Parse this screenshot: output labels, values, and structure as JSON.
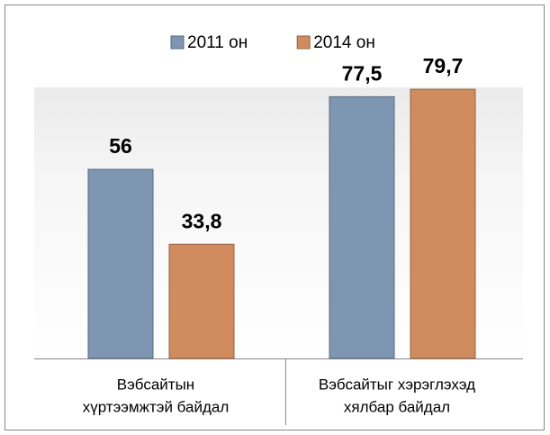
{
  "chart_data": {
    "type": "bar",
    "categories": [
      [
        "Вэбсайтын",
        "хүртээмжтэй байдал"
      ],
      [
        "Вэбсайтыг хэрэглэхэд",
        "хялбар байдал"
      ]
    ],
    "series": [
      {
        "name": "2011 он",
        "color": "#7f96b2",
        "values": [
          56,
          77.5
        ],
        "value_labels": [
          "56",
          "77,5"
        ]
      },
      {
        "name": "2014 он",
        "color": "#d08c5f",
        "values": [
          33.8,
          79.7
        ],
        "value_labels": [
          "33,8",
          "79,7"
        ]
      }
    ],
    "ylim": [
      0,
      80
    ],
    "legend": "top"
  }
}
